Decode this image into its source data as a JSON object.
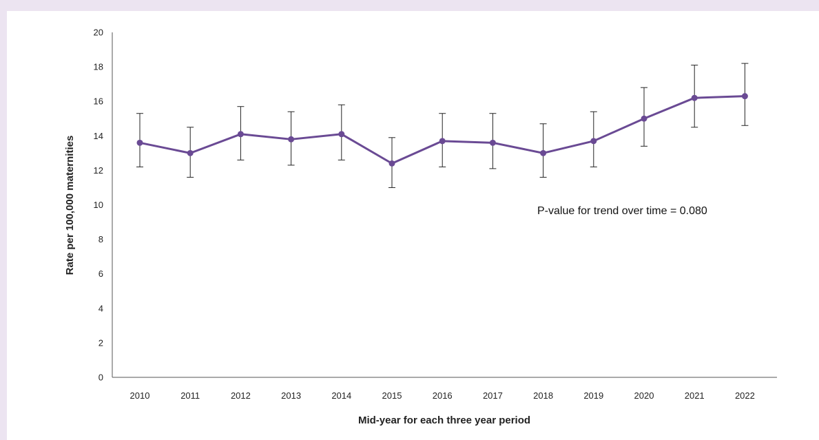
{
  "chart_data": {
    "type": "line",
    "title": "",
    "xlabel": "Mid-year for each three year period",
    "ylabel": "Rate per 100,000 maternities",
    "ylim": [
      0,
      20
    ],
    "yticks": [
      "0",
      "2",
      "4",
      "6",
      "8",
      "10",
      "12",
      "14",
      "16",
      "18",
      "20"
    ],
    "categories": [
      "2010",
      "2011",
      "2012",
      "2013",
      "2014",
      "2015",
      "2016",
      "2017",
      "2018",
      "2019",
      "2020",
      "2021",
      "2022"
    ],
    "series": [
      {
        "values": [
          13.6,
          13.0,
          14.1,
          13.8,
          14.1,
          12.4,
          13.7,
          13.6,
          13.0,
          13.7,
          15.0,
          16.2,
          16.3
        ],
        "lower": [
          12.2,
          11.6,
          12.6,
          12.3,
          12.6,
          11.0,
          12.2,
          12.1,
          11.6,
          12.2,
          13.4,
          14.5,
          14.6
        ],
        "upper": [
          15.3,
          14.5,
          15.7,
          15.4,
          15.8,
          13.9,
          15.3,
          15.3,
          14.7,
          15.4,
          16.8,
          18.1,
          18.2
        ],
        "color": "#6a4a94"
      }
    ],
    "annotation": "P-value for trend over time = 0.080",
    "grid": false,
    "legend": "none"
  }
}
